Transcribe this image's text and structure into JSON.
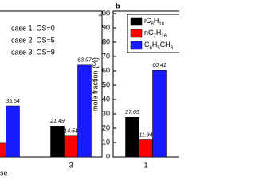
{
  "chart_data": [
    {
      "type": "bar",
      "xlabel": "se",
      "annotations": [
        "case 1: OS=0",
        "case 2: OS=5",
        "case 3: OS=9"
      ],
      "categories": [
        null,
        "3"
      ],
      "series": [
        {
          "color": "#000000",
          "values": [
            null,
            21.49
          ],
          "value_labels": [
            null,
            "21.49"
          ]
        },
        {
          "color": "#ff0000",
          "values": [
            9.5,
            14.54
          ],
          "value_labels": [
            null,
            "14.54"
          ]
        },
        {
          "color": "#1a1aff",
          "values": [
            35.54,
            63.97
          ],
          "value_labels": [
            "35.54",
            "63.97"
          ]
        }
      ],
      "ylim": [
        0,
        100
      ]
    },
    {
      "type": "bar",
      "panel_label": "b",
      "ylabel": "mole fraction (%)",
      "categories": [
        "1"
      ],
      "series": [
        {
          "name": "iC8H18",
          "color": "#000000",
          "values": [
            27.65
          ]
        },
        {
          "name": "nC7H16",
          "color": "#ff0000",
          "values": [
            11.94
          ]
        },
        {
          "name": "C6H5CH3",
          "color": "#1a1aff",
          "values": [
            60.41
          ]
        }
      ],
      "ylim": [
        0,
        100
      ],
      "yticks": [
        0,
        10,
        20,
        30,
        40,
        50,
        60,
        70,
        80,
        90,
        100
      ]
    }
  ]
}
